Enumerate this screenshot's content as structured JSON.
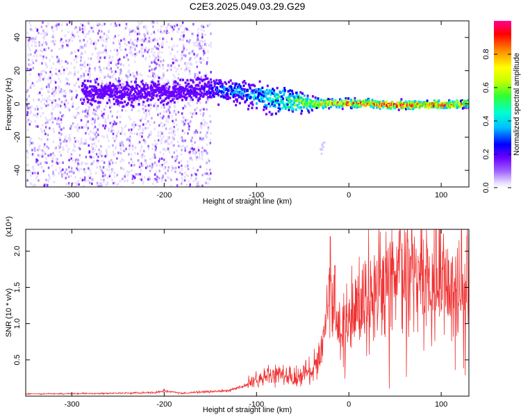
{
  "title": "C2E3.2025.049.03.29.G29",
  "colors": {
    "snr_line": "#f03030",
    "colormap": [
      "#e6dcff",
      "#a060ff",
      "#6a00ff",
      "#0000ff",
      "#00bfff",
      "#00ffd0",
      "#30ff30",
      "#c8ff00",
      "#ffff00",
      "#ff8c00",
      "#ff0000",
      "#ff0090"
    ]
  },
  "chart_data": [
    {
      "type": "heatmap",
      "xlabel": "Height of straight line (km)",
      "ylabel": "Frequency (Hz)",
      "xlim": [
        -350,
        130
      ],
      "ylim": [
        -50,
        50
      ],
      "xticks": [
        -300,
        -200,
        -100,
        0,
        100
      ],
      "xtick_labels": [
        "-300",
        "-200",
        "-100",
        "0",
        "100"
      ],
      "yticks": [
        -40,
        -20,
        0,
        20,
        40
      ],
      "ytick_labels": [
        "-40",
        "-20",
        "0",
        "20",
        "40"
      ],
      "colorbar": {
        "label": "Normalized spectral amplitude",
        "range": [
          0,
          1
        ],
        "ticks": [
          0.0,
          0.2,
          0.4,
          0.6,
          0.8
        ],
        "tick_labels": [
          "0.0",
          "0.2",
          "0.4",
          "0.6",
          "0.8"
        ]
      },
      "noise_region_x": [
        -350,
        -150
      ],
      "signal_track": {
        "x": [
          -290,
          -250,
          -200,
          -160,
          -140,
          -120,
          -100,
          -80,
          -60,
          -40,
          -20,
          0,
          20,
          40,
          60,
          80,
          100,
          130
        ],
        "freq": [
          8,
          7,
          7,
          9,
          9,
          8,
          5,
          3,
          2,
          1,
          1,
          1,
          1,
          0,
          0,
          0,
          0,
          1
        ],
        "amplitude": [
          0.12,
          0.15,
          0.18,
          0.2,
          0.3,
          0.35,
          0.38,
          0.45,
          0.55,
          0.65,
          0.8,
          0.85,
          0.85,
          0.9,
          0.9,
          0.85,
          0.85,
          0.7
        ],
        "spread_hz": [
          6,
          6,
          6,
          6,
          6,
          6,
          7,
          8,
          6,
          3,
          2,
          2,
          2,
          2,
          2,
          2,
          2,
          2
        ]
      }
    },
    {
      "type": "line",
      "xlabel": "Height of straight line (km)",
      "ylabel": "SNR (10 * v/v)",
      "y_multiplier": "(x10⁴)",
      "xlim": [
        -350,
        130
      ],
      "ylim": [
        0,
        2.3
      ],
      "xticks": [
        -300,
        -200,
        -100,
        0,
        100
      ],
      "xtick_labels": [
        "-300",
        "-200",
        "-100",
        "0",
        "100"
      ],
      "yticks": [
        0.5,
        1.0,
        1.5,
        2.0
      ],
      "ytick_labels": [
        "0.5",
        "1.0",
        "1.5",
        "2.0"
      ],
      "envelope": {
        "x": [
          -350,
          -250,
          -210,
          -200,
          -180,
          -130,
          -110,
          -100,
          -80,
          -60,
          -40,
          -30,
          -25,
          -22,
          -20,
          -18,
          -15,
          -10,
          0,
          10,
          20,
          30,
          50,
          70,
          90,
          100,
          110,
          120,
          130
        ],
        "y": [
          0.03,
          0.04,
          0.05,
          0.07,
          0.04,
          0.08,
          0.15,
          0.22,
          0.3,
          0.25,
          0.35,
          0.6,
          0.85,
          1.2,
          1.5,
          1.1,
          0.9,
          0.95,
          1.05,
          1.2,
          1.3,
          1.5,
          1.6,
          1.65,
          1.62,
          1.55,
          1.5,
          1.45,
          1.48
        ]
      },
      "peaks": [
        {
          "x": -20,
          "y": 2.2
        },
        {
          "x": -15,
          "y": 1.8
        },
        {
          "x": 122,
          "y": 2.3
        },
        {
          "x": 128,
          "y": 2.2
        },
        {
          "x": -200,
          "y": 0.1
        }
      ]
    }
  ]
}
